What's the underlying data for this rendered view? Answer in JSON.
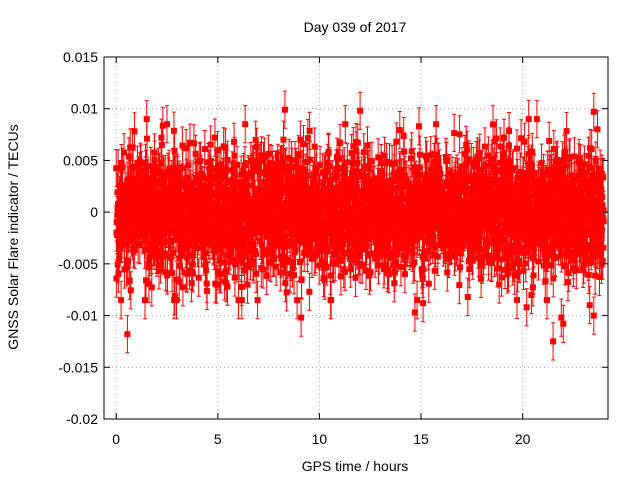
{
  "chart_data": {
    "type": "scatter",
    "title": "Day 039 of 2017",
    "xlabel": "GPS time / hours",
    "ylabel": "GNSS Solar Flare indicator / TECUs",
    "xlim": [
      -0.6,
      24.2
    ],
    "ylim": [
      -0.02,
      0.015
    ],
    "xticks": [
      0,
      5,
      10,
      15,
      20
    ],
    "xtick_labels": [
      "0",
      "5",
      "10",
      "15",
      "20"
    ],
    "yticks": [
      -0.02,
      -0.015,
      -0.01,
      -0.005,
      0,
      0.005,
      0.01,
      0.015
    ],
    "ytick_labels": [
      "-0.02",
      "-0.015",
      "-0.01",
      "-0.005",
      "0",
      "0.005",
      "0.01",
      "0.015"
    ],
    "grid": true,
    "legend": "none",
    "color": "#ff0000",
    "series": [
      {
        "name": "solar flare indicator",
        "noise_sigma": 0.003,
        "error_bar": 0.0018,
        "count": 2880,
        "x_start": 0,
        "x_end": 23.99,
        "outliers": [
          {
            "x": 0.55,
            "y": -0.0118
          },
          {
            "x": 1.5,
            "y": 0.009
          },
          {
            "x": 8.3,
            "y": 0.0099
          },
          {
            "x": 9.1,
            "y": -0.0102
          },
          {
            "x": 8.9,
            "y": -0.0085
          },
          {
            "x": 12.0,
            "y": 0.0098
          },
          {
            "x": 14.7,
            "y": -0.0097
          },
          {
            "x": 14.9,
            "y": 0.0083
          },
          {
            "x": 15.1,
            "y": -0.0088
          },
          {
            "x": 20.3,
            "y": 0.009
          },
          {
            "x": 20.2,
            "y": -0.0092
          },
          {
            "x": 20.7,
            "y": 0.009
          },
          {
            "x": 21.2,
            "y": -0.0085
          },
          {
            "x": 21.5,
            "y": -0.0125
          },
          {
            "x": 21.9,
            "y": -0.0102
          },
          {
            "x": 22.0,
            "y": -0.0108
          },
          {
            "x": 23.5,
            "y": 0.0097
          },
          {
            "x": 23.5,
            "y": -0.01
          },
          {
            "x": 23.3,
            "y": -0.009
          },
          {
            "x": 5.8,
            "y": 0.0068
          },
          {
            "x": 17.3,
            "y": -0.0082
          }
        ]
      }
    ]
  }
}
